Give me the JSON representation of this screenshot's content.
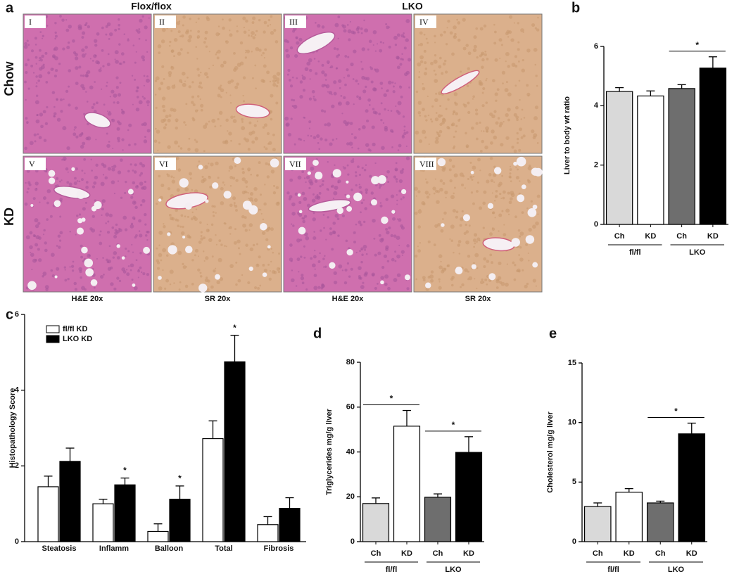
{
  "figure_a": {
    "panel_label": "a",
    "column_headers": [
      "Flox/flox",
      "LKO"
    ],
    "row_labels": [
      "Chow",
      "KD"
    ],
    "panels": [
      "I",
      "II",
      "III",
      "IV",
      "V",
      "VI",
      "VII",
      "VIII"
    ],
    "stains": [
      "H&E 20x",
      "SR 20x",
      "H&E 20x",
      "SR 20x"
    ]
  },
  "chart_data": [
    {
      "type": "bar",
      "panel_label": "b",
      "y_label": "Liver to body wt ratio",
      "categories": [
        "Ch",
        "KD",
        "Ch",
        "KD"
      ],
      "groups": [
        "fl/fl",
        "LKO"
      ],
      "values": [
        4.48,
        4.33,
        4.58,
        5.27
      ],
      "errors": [
        0.13,
        0.17,
        0.13,
        0.38
      ],
      "colors": [
        "#d9d9d9",
        "#ffffff",
        "#6e6e6e",
        "#000000"
      ],
      "ylim": [
        0,
        6
      ],
      "yticks": [
        0,
        2,
        4,
        6
      ],
      "significance": [
        {
          "label": "*",
          "pair": [
            2,
            3
          ]
        }
      ]
    },
    {
      "type": "grouped_bar",
      "panel_label": "c",
      "y_label": "Histopathology Score",
      "categories": [
        "Steatosis",
        "Inflamm",
        "Balloon",
        "Total",
        "Fibrosis"
      ],
      "series": [
        {
          "name": "fl/fl KD",
          "color": "#ffffff",
          "values": [
            1.45,
            1.0,
            0.27,
            2.72,
            0.45
          ],
          "errors": [
            0.28,
            0.12,
            0.2,
            0.47,
            0.21
          ]
        },
        {
          "name": "LKO KD",
          "color": "#000000",
          "values": [
            2.12,
            1.5,
            1.12,
            4.75,
            0.88
          ],
          "errors": [
            0.35,
            0.18,
            0.35,
            0.7,
            0.28
          ],
          "stars": [
            null,
            "*",
            "*",
            "*",
            null
          ]
        }
      ],
      "legend": "upper left",
      "ylim": [
        0,
        6
      ],
      "yticks": [
        0,
        2,
        4,
        6
      ]
    },
    {
      "type": "bar",
      "panel_label": "d",
      "y_label": "Triglycerides mg/g liver",
      "categories": [
        "Ch",
        "KD",
        "Ch",
        "KD"
      ],
      "groups": [
        "fl/fl",
        "LKO"
      ],
      "values": [
        17,
        51.5,
        19.8,
        39.8
      ],
      "errors": [
        2.5,
        7,
        1.5,
        7
      ],
      "colors": [
        "#d9d9d9",
        "#ffffff",
        "#6e6e6e",
        "#000000"
      ],
      "ylim": [
        0,
        80
      ],
      "yticks": [
        0,
        20,
        40,
        60,
        80
      ],
      "significance": [
        {
          "label": "*",
          "pair": [
            0,
            1
          ]
        },
        {
          "label": "*",
          "pair": [
            2,
            3
          ]
        }
      ]
    },
    {
      "type": "bar",
      "panel_label": "e",
      "y_label": "Cholesterol mg/g liver",
      "categories": [
        "Ch",
        "KD",
        "Ch",
        "KD"
      ],
      "groups": [
        "fl/fl",
        "LKO"
      ],
      "values": [
        2.95,
        4.15,
        3.25,
        9.05
      ],
      "errors": [
        0.3,
        0.3,
        0.15,
        0.9
      ],
      "colors": [
        "#d9d9d9",
        "#ffffff",
        "#6e6e6e",
        "#000000"
      ],
      "ylim": [
        0,
        15
      ],
      "yticks": [
        0,
        5,
        10,
        15
      ],
      "significance": [
        {
          "label": "*",
          "pair": [
            2,
            3
          ]
        }
      ]
    }
  ]
}
